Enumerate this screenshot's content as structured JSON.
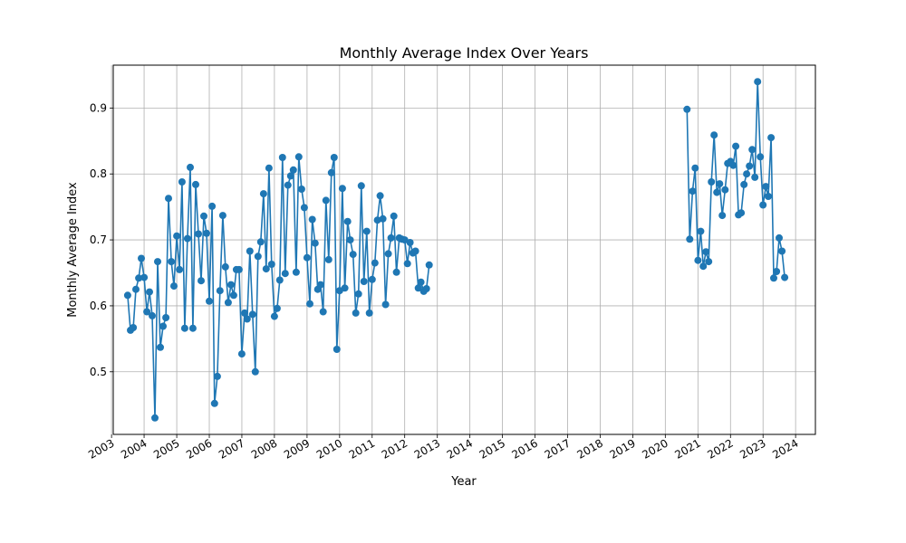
{
  "chart_data": {
    "type": "line",
    "title": "Monthly Average Index Over Years",
    "xlabel": "Year",
    "ylabel": "Monthly Average Index",
    "xlim": [
      "2003-01-20",
      "2024-08-10"
    ],
    "ylim": [
      0.405,
      0.965
    ],
    "x_ticks": [
      "2003",
      "2004",
      "2005",
      "2006",
      "2007",
      "2008",
      "2009",
      "2010",
      "2011",
      "2012",
      "2013",
      "2014",
      "2015",
      "2016",
      "2017",
      "2018",
      "2019",
      "2020",
      "2021",
      "2022",
      "2023",
      "2024"
    ],
    "y_ticks": [
      0.5,
      0.6,
      0.7,
      0.8,
      0.9
    ],
    "grid": true,
    "color": "#1f77b4",
    "marker": "circle",
    "segments": [
      {
        "start": "2003-07",
        "values": [
          0.616,
          0.563,
          0.567,
          0.625,
          0.642,
          0.672,
          0.643,
          0.591,
          0.621,
          0.585,
          0.43,
          0.667,
          0.537,
          0.569,
          0.582,
          0.763,
          0.667,
          0.63,
          0.706,
          0.655,
          0.788,
          0.566,
          0.702,
          0.81,
          0.566,
          0.784,
          0.709,
          0.638,
          0.736,
          0.71,
          0.607,
          0.751,
          0.452,
          0.493,
          0.623,
          0.737,
          0.659,
          0.605,
          0.632,
          0.616,
          0.655,
          0.655,
          0.527,
          0.589,
          0.58,
          0.683,
          0.587,
          0.5,
          0.675,
          0.697,
          0.77,
          0.656,
          0.809,
          0.663,
          0.584,
          0.596,
          0.639,
          0.825,
          0.649,
          0.783,
          0.797,
          0.806,
          0.651,
          0.826,
          0.777,
          0.749,
          0.673,
          0.603,
          0.731,
          0.695,
          0.625,
          0.632,
          0.591,
          0.76,
          0.67,
          0.802,
          0.825,
          0.534,
          0.623,
          0.778,
          0.627,
          0.728,
          0.7,
          0.678,
          0.589,
          0.618,
          0.782,
          0.637,
          0.713,
          0.589,
          0.64,
          0.665,
          0.73,
          0.767,
          0.732,
          0.602,
          0.679,
          0.703,
          0.736,
          0.651,
          0.703,
          0.701,
          0.7,
          0.664,
          0.696,
          0.68,
          0.683,
          0.627,
          0.636,
          0.622,
          0.626,
          0.662
        ]
      },
      {
        "start": "2020-09",
        "values": [
          0.898,
          0.701,
          0.774,
          0.809,
          0.669,
          0.713,
          0.66,
          0.682,
          0.667,
          0.788,
          0.859,
          0.772,
          0.785,
          0.737,
          0.776,
          0.816,
          0.819,
          0.813,
          0.842,
          0.738,
          0.741,
          0.784,
          0.8,
          0.812,
          0.837,
          0.795,
          0.94,
          0.826,
          0.753,
          0.781,
          0.766,
          0.855,
          0.642,
          0.652,
          0.703,
          0.683,
          0.643
        ]
      }
    ]
  }
}
